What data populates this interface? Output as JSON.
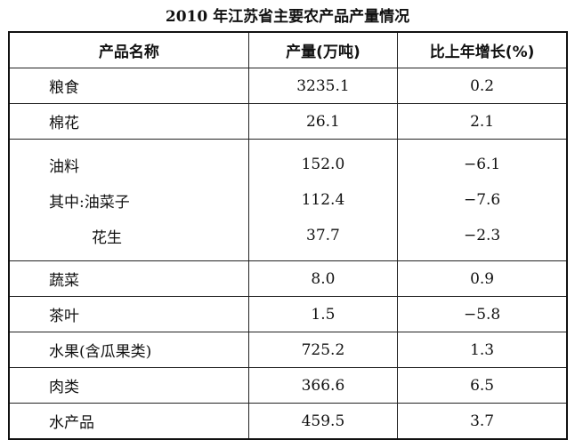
{
  "title": "2010 年江苏省主要农产品产量情况",
  "headers": [
    "产品名称",
    "产量(万吨)",
    "比上年增长(%)"
  ],
  "rows": [
    {
      "name": "粮食",
      "output": "3235.1",
      "growth": "0.2"
    },
    {
      "name": "棉花",
      "output": "26.1",
      "growth": "2.1"
    },
    {
      "name": "油料",
      "output": "152.0",
      "growth": "−6.1"
    },
    {
      "name": "其中:油菜子",
      "output": "112.4",
      "growth": "−7.6"
    },
    {
      "name": "花生",
      "output": "37.7",
      "growth": "−2.3"
    },
    {
      "name": "蔬菜",
      "output": "8.0",
      "growth": "0.9"
    },
    {
      "name": "茶叶",
      "output": "1.5",
      "growth": "−5.8"
    },
    {
      "name": "水果(含瓜果类)",
      "output": "725.2",
      "growth": "1.3"
    },
    {
      "name": "肉类",
      "output": "366.6",
      "growth": "6.5"
    },
    {
      "name": "水产品",
      "output": "459.5",
      "growth": "3.7"
    }
  ]
}
